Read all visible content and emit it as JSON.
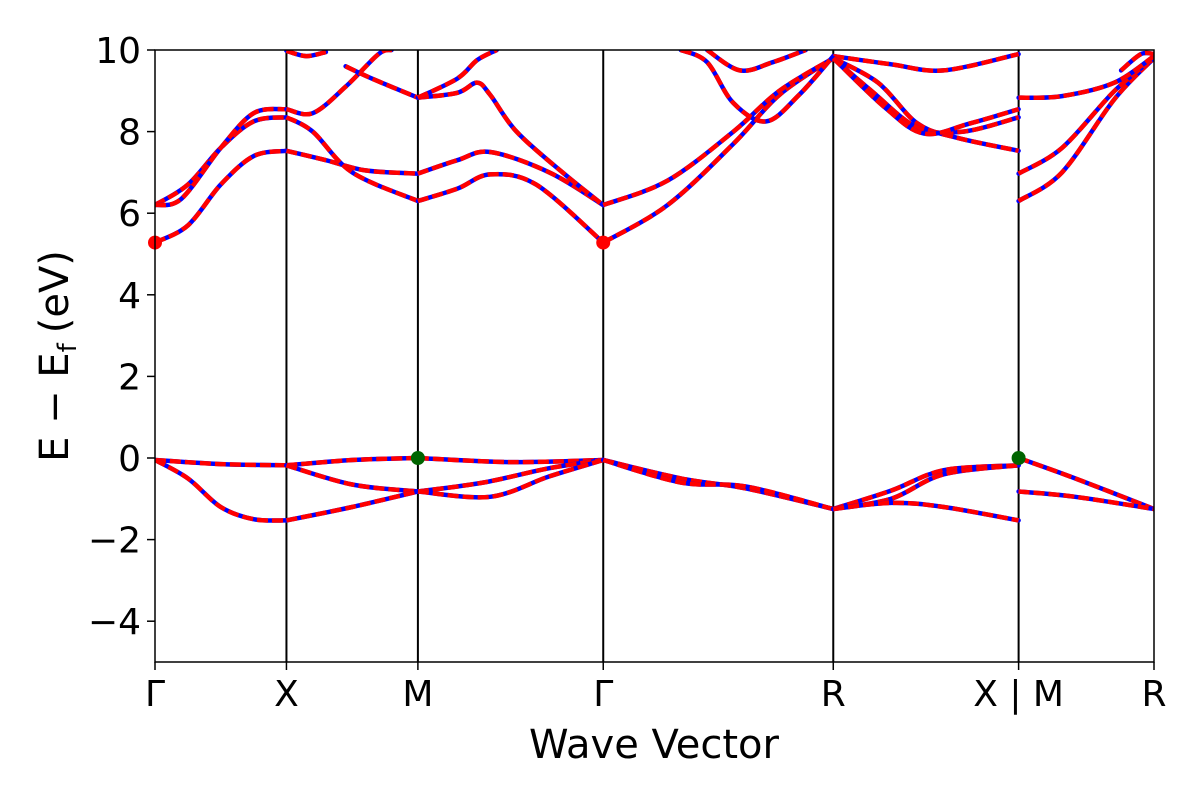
{
  "chart_data": {
    "type": "line",
    "xlabel": "Wave Vector",
    "ylabel": "E − E",
    "ylabel_subscript": "f",
    "ylabel_unit": "(eV)",
    "xlim": [
      0,
      7.6
    ],
    "ylim": [
      -5,
      10
    ],
    "yticks": [
      -4,
      -2,
      0,
      2,
      4,
      6,
      8,
      10
    ],
    "ytick_labels": [
      "−4",
      "−2",
      "0",
      "2",
      "4",
      "6",
      "8",
      "10"
    ],
    "high_symmetry_points": [
      {
        "label": "Γ",
        "x": 0
      },
      {
        "label": "X",
        "x": 1
      },
      {
        "label": "M",
        "x": 2
      },
      {
        "label": "Γ",
        "x": 3.41
      },
      {
        "label": "R",
        "x": 5.16
      },
      {
        "label": "X | M",
        "x": 6.57
      },
      {
        "label": "R",
        "x": 7.6
      }
    ],
    "colors": {
      "primary": "#ff0000",
      "secondary": "#0000ff",
      "cbm": "#ff0000",
      "vbm": "#006400"
    },
    "series": [
      {
        "segment": "Γ-X",
        "points": [
          [
            0,
            5.28
          ],
          [
            0.25,
            5.7
          ],
          [
            0.5,
            6.7
          ],
          [
            0.75,
            7.4
          ],
          [
            1,
            7.53
          ]
        ]
      },
      {
        "segment": "Γ-X",
        "points": [
          [
            0,
            6.2
          ],
          [
            0.25,
            6.7
          ],
          [
            0.5,
            7.6
          ],
          [
            0.75,
            8.25
          ],
          [
            1,
            8.35
          ]
        ]
      },
      {
        "segment": "Γ-X",
        "points": [
          [
            0,
            6.2
          ],
          [
            0.2,
            6.35
          ],
          [
            0.5,
            7.6
          ],
          [
            0.75,
            8.45
          ],
          [
            1,
            8.55
          ]
        ]
      },
      {
        "segment": "X-M",
        "points": [
          [
            1,
            7.53
          ],
          [
            1.3,
            7.3
          ],
          [
            1.6,
            7.05
          ],
          [
            2,
            6.97
          ]
        ]
      },
      {
        "segment": "X-M",
        "points": [
          [
            1,
            8.35
          ],
          [
            1.2,
            8.0
          ],
          [
            1.5,
            7.0
          ],
          [
            2,
            6.3
          ]
        ]
      },
      {
        "segment": "X-M",
        "points": [
          [
            1,
            8.55
          ],
          [
            1.2,
            8.45
          ],
          [
            1.45,
            9.1
          ],
          [
            1.7,
            9.9
          ],
          [
            1.8,
            10
          ]
        ]
      },
      {
        "segment": "X-M",
        "points": [
          [
            1,
            9.98
          ],
          [
            1.15,
            9.85
          ],
          [
            1.3,
            9.95
          ]
        ]
      },
      {
        "segment": "X-M",
        "points": [
          [
            1.45,
            9.6
          ],
          [
            1.65,
            9.3
          ],
          [
            2,
            8.83
          ]
        ]
      },
      {
        "segment": "M-Γ",
        "points": [
          [
            2,
            6.3
          ],
          [
            2.3,
            6.6
          ],
          [
            2.55,
            6.95
          ],
          [
            2.9,
            6.7
          ],
          [
            3.41,
            5.28
          ]
        ]
      },
      {
        "segment": "M-Γ",
        "points": [
          [
            2,
            6.97
          ],
          [
            2.3,
            7.3
          ],
          [
            2.55,
            7.5
          ],
          [
            3.0,
            7.0
          ],
          [
            3.41,
            6.2
          ]
        ]
      },
      {
        "segment": "M-Γ",
        "points": [
          [
            2,
            8.83
          ],
          [
            2.3,
            8.95
          ],
          [
            2.45,
            9.2
          ],
          [
            2.55,
            8.9
          ],
          [
            2.75,
            8.0
          ],
          [
            3.1,
            7.0
          ],
          [
            3.41,
            6.2
          ]
        ]
      },
      {
        "segment": "M-Γ",
        "points": [
          [
            2,
            8.83
          ],
          [
            2.3,
            9.3
          ],
          [
            2.45,
            9.75
          ],
          [
            2.6,
            10
          ]
        ]
      },
      {
        "segment": "Γ-R",
        "points": [
          [
            3.41,
            5.28
          ],
          [
            3.9,
            6.2
          ],
          [
            4.4,
            7.7
          ],
          [
            4.75,
            8.9
          ],
          [
            5.16,
            9.8
          ]
        ]
      },
      {
        "segment": "Γ-R",
        "points": [
          [
            3.41,
            6.2
          ],
          [
            3.9,
            6.8
          ],
          [
            4.4,
            8.0
          ],
          [
            4.75,
            9.0
          ],
          [
            5.16,
            9.8
          ]
        ]
      },
      {
        "segment": "Γ-R",
        "points": [
          [
            4.0,
            10
          ],
          [
            4.2,
            9.7
          ],
          [
            4.4,
            8.7
          ],
          [
            4.65,
            8.25
          ],
          [
            4.9,
            8.9
          ],
          [
            5.16,
            9.85
          ]
        ]
      },
      {
        "segment": "Γ-R",
        "points": [
          [
            4.2,
            10
          ],
          [
            4.45,
            9.5
          ],
          [
            4.7,
            9.7
          ],
          [
            4.95,
            10
          ]
        ]
      },
      {
        "segment": "R-X",
        "points": [
          [
            5.16,
            9.85
          ],
          [
            5.6,
            9.65
          ],
          [
            6.0,
            9.5
          ],
          [
            6.57,
            9.9
          ]
        ]
      },
      {
        "segment": "R-X",
        "points": [
          [
            5.16,
            9.8
          ],
          [
            5.5,
            9.2
          ],
          [
            5.8,
            8.2
          ],
          [
            6.1,
            7.85
          ],
          [
            6.57,
            7.53
          ]
        ]
      },
      {
        "segment": "R-X",
        "points": [
          [
            5.16,
            9.8
          ],
          [
            5.45,
            9.0
          ],
          [
            5.8,
            8.1
          ],
          [
            6.15,
            8.0
          ],
          [
            6.57,
            8.35
          ]
        ]
      },
      {
        "segment": "R-X",
        "points": [
          [
            5.16,
            9.8
          ],
          [
            5.55,
            8.6
          ],
          [
            5.85,
            7.95
          ],
          [
            6.2,
            8.2
          ],
          [
            6.57,
            8.55
          ]
        ]
      },
      {
        "segment": "M-R",
        "points": [
          [
            6.57,
            6.3
          ],
          [
            6.9,
            7.0
          ],
          [
            7.3,
            8.8
          ],
          [
            7.6,
            9.8
          ]
        ]
      },
      {
        "segment": "M-R",
        "points": [
          [
            6.57,
            6.97
          ],
          [
            6.9,
            7.6
          ],
          [
            7.3,
            9.0
          ],
          [
            7.6,
            9.8
          ]
        ]
      },
      {
        "segment": "M-R",
        "points": [
          [
            6.57,
            8.83
          ],
          [
            6.9,
            8.87
          ],
          [
            7.3,
            9.2
          ],
          [
            7.6,
            9.85
          ]
        ]
      },
      {
        "segment": "M-R",
        "points": [
          [
            7.35,
            9.5
          ],
          [
            7.5,
            9.9
          ],
          [
            7.6,
            9.9
          ]
        ]
      },
      {
        "segment": "Γ-X",
        "points": [
          [
            0,
            -0.05
          ],
          [
            0.5,
            -0.15
          ],
          [
            1,
            -0.18
          ]
        ]
      },
      {
        "segment": "Γ-X",
        "points": [
          [
            0,
            -0.05
          ],
          [
            0.25,
            -0.5
          ],
          [
            0.5,
            -1.2
          ],
          [
            0.75,
            -1.5
          ],
          [
            1,
            -1.53
          ]
        ]
      },
      {
        "segment": "X-M",
        "points": [
          [
            1,
            -0.18
          ],
          [
            1.5,
            -0.05
          ],
          [
            2,
            0
          ]
        ]
      },
      {
        "segment": "X-M",
        "points": [
          [
            1,
            -0.18
          ],
          [
            1.5,
            -0.65
          ],
          [
            2,
            -0.82
          ]
        ]
      },
      {
        "segment": "X-M",
        "points": [
          [
            1,
            -1.53
          ],
          [
            1.5,
            -1.2
          ],
          [
            2,
            -0.82
          ]
        ]
      },
      {
        "segment": "M-Γ",
        "points": [
          [
            2,
            0
          ],
          [
            2.7,
            -0.1
          ],
          [
            3.41,
            -0.05
          ]
        ]
      },
      {
        "segment": "M-Γ",
        "points": [
          [
            2,
            -0.82
          ],
          [
            2.5,
            -0.6
          ],
          [
            3.0,
            -0.25
          ],
          [
            3.41,
            -0.05
          ]
        ]
      },
      {
        "segment": "M-Γ",
        "points": [
          [
            2,
            -0.82
          ],
          [
            2.55,
            -0.95
          ],
          [
            3.0,
            -0.45
          ],
          [
            3.41,
            -0.05
          ]
        ]
      },
      {
        "segment": "Γ-R",
        "points": [
          [
            3.41,
            -0.05
          ],
          [
            4.0,
            -0.5
          ],
          [
            4.5,
            -0.75
          ],
          [
            5.16,
            -1.25
          ]
        ]
      },
      {
        "segment": "Γ-R",
        "points": [
          [
            3.41,
            -0.05
          ],
          [
            4.0,
            -0.6
          ],
          [
            4.5,
            -0.7
          ],
          [
            5.16,
            -1.25
          ]
        ]
      },
      {
        "segment": "R-X",
        "points": [
          [
            5.16,
            -1.25
          ],
          [
            5.6,
            -0.8
          ],
          [
            6.0,
            -0.3
          ],
          [
            6.57,
            -0.18
          ]
        ]
      },
      {
        "segment": "R-X",
        "points": [
          [
            5.16,
            -1.25
          ],
          [
            5.6,
            -1.0
          ],
          [
            6.0,
            -0.4
          ],
          [
            6.57,
            -0.18
          ]
        ]
      },
      {
        "segment": "R-X",
        "points": [
          [
            5.16,
            -1.25
          ],
          [
            5.6,
            -1.1
          ],
          [
            6.0,
            -1.2
          ],
          [
            6.57,
            -1.53
          ]
        ]
      },
      {
        "segment": "M-R",
        "points": [
          [
            6.57,
            0
          ],
          [
            7.0,
            -0.5
          ],
          [
            7.6,
            -1.25
          ]
        ]
      },
      {
        "segment": "M-R",
        "points": [
          [
            6.57,
            -0.82
          ],
          [
            7.0,
            -0.95
          ],
          [
            7.6,
            -1.25
          ]
        ]
      }
    ],
    "band_edges": [
      {
        "kind": "cbm",
        "x": 0,
        "y": 5.28
      },
      {
        "kind": "cbm",
        "x": 3.41,
        "y": 5.28
      },
      {
        "kind": "vbm",
        "x": 2,
        "y": 0
      },
      {
        "kind": "vbm",
        "x": 6.57,
        "y": 0
      }
    ]
  }
}
